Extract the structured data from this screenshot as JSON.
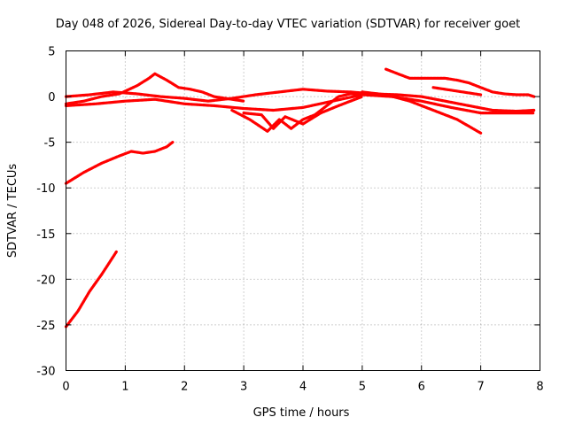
{
  "chart_data": {
    "type": "line",
    "title": "Day 048 of 2026, Sidereal Day-to-day VTEC variation (SDTVAR) for receiver goet",
    "xlabel": "GPS time / hours",
    "ylabel": "SDTVAR / TECUs",
    "xlim": [
      0,
      8
    ],
    "ylim": [
      -30,
      5
    ],
    "xticks": [
      0,
      1,
      2,
      3,
      4,
      5,
      6,
      7,
      8
    ],
    "yticks": [
      5,
      0,
      -5,
      -10,
      -15,
      -20,
      -25,
      -30
    ],
    "grid": true,
    "color": "#ff0000",
    "series": [
      {
        "name": "s1",
        "x": [
          0.0,
          0.3,
          0.6,
          0.9,
          1.2,
          1.4,
          1.5,
          1.7,
          1.9,
          2.1,
          2.3,
          2.5,
          2.8,
          3.0
        ],
        "y": [
          -0.8,
          -0.5,
          0.0,
          0.3,
          1.2,
          2.0,
          2.5,
          1.8,
          1.0,
          0.8,
          0.5,
          0.0,
          -0.3,
          -0.5
        ]
      },
      {
        "name": "s2",
        "x": [
          0.0,
          0.4,
          0.8,
          1.2,
          1.6,
          2.0,
          2.4,
          2.8,
          3.2,
          3.6,
          4.0,
          4.4,
          4.8,
          5.2,
          5.6,
          6.0,
          6.4,
          6.8,
          7.2,
          7.6,
          7.9
        ],
        "y": [
          0.0,
          0.2,
          0.5,
          0.3,
          0.0,
          -0.2,
          -0.5,
          -0.2,
          0.2,
          0.5,
          0.8,
          0.6,
          0.5,
          0.3,
          0.2,
          0.0,
          -0.5,
          -1.0,
          -1.5,
          -1.6,
          -1.5
        ]
      },
      {
        "name": "s3",
        "x": [
          0.0,
          0.5,
          1.0,
          1.5,
          2.0,
          2.5,
          3.0,
          3.5,
          4.0,
          4.5,
          5.0,
          5.5,
          6.0,
          6.5,
          7.0,
          7.5,
          7.9
        ],
        "y": [
          -1.0,
          -0.8,
          -0.5,
          -0.3,
          -0.8,
          -1.0,
          -1.3,
          -1.5,
          -1.2,
          -0.5,
          0.2,
          0.0,
          -0.5,
          -1.2,
          -1.8,
          -1.8,
          -1.8
        ]
      },
      {
        "name": "s4",
        "x": [
          2.8,
          3.1,
          3.4,
          3.6,
          3.8,
          4.0,
          4.2,
          4.4,
          4.6,
          4.8,
          5.0
        ],
        "y": [
          -1.5,
          -2.5,
          -3.8,
          -2.5,
          -3.5,
          -2.5,
          -2.0,
          -1.0,
          0.0,
          0.3,
          0.3
        ]
      },
      {
        "name": "s5",
        "x": [
          3.0,
          3.3,
          3.5,
          3.7,
          4.0,
          4.3,
          4.6,
          5.0
        ],
        "y": [
          -1.8,
          -2.0,
          -3.5,
          -2.2,
          -3.0,
          -1.8,
          -1.0,
          0.0
        ]
      },
      {
        "name": "s6",
        "x": [
          5.4,
          5.6,
          5.8,
          6.0,
          6.2,
          6.4,
          6.6,
          6.8,
          7.0,
          7.2,
          7.4,
          7.6,
          7.8,
          7.9
        ],
        "y": [
          3.0,
          2.5,
          2.0,
          2.0,
          2.0,
          2.0,
          1.8,
          1.5,
          1.0,
          0.5,
          0.3,
          0.2,
          0.2,
          0.0
        ]
      },
      {
        "name": "s7",
        "x": [
          5.0,
          5.4,
          5.8,
          6.2,
          6.6,
          7.0
        ],
        "y": [
          0.5,
          0.2,
          -0.5,
          -1.5,
          -2.5,
          -4.0
        ]
      },
      {
        "name": "s8",
        "x": [
          6.2,
          6.6,
          7.0
        ],
        "y": [
          1.0,
          0.6,
          0.2
        ]
      },
      {
        "name": "s9",
        "x": [
          0.0,
          0.3,
          0.6,
          0.9,
          1.1,
          1.3,
          1.5,
          1.7,
          1.8
        ],
        "y": [
          -9.5,
          -8.3,
          -7.3,
          -6.5,
          -6.0,
          -6.2,
          -6.0,
          -5.5,
          -5.0
        ]
      },
      {
        "name": "s10",
        "x": [
          0.0,
          0.2,
          0.4,
          0.6,
          0.8,
          0.85
        ],
        "y": [
          -25.2,
          -23.5,
          -21.3,
          -19.5,
          -17.5,
          -17.0
        ]
      }
    ]
  }
}
